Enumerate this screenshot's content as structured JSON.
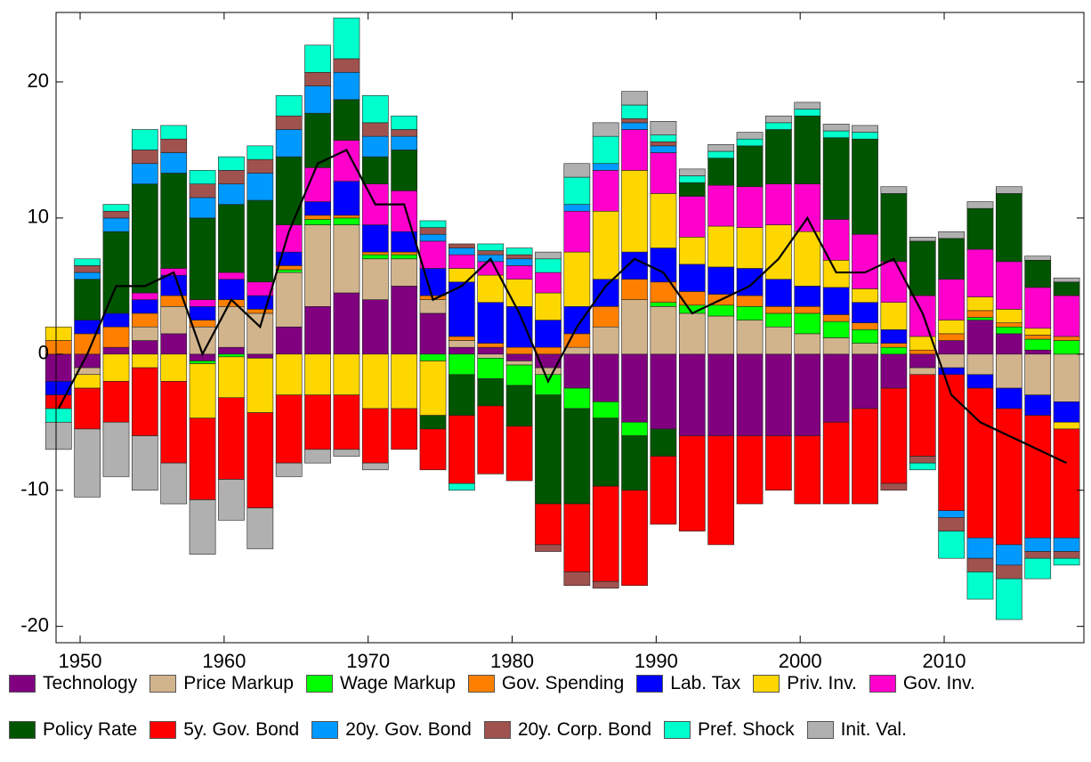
{
  "chart_data": {
    "type": "diverging-stacked-bar",
    "x": [
      1948.5,
      1950.5,
      1952.5,
      1954.5,
      1956.5,
      1958.5,
      1960.5,
      1962.5,
      1964.5,
      1966.5,
      1968.5,
      1970.5,
      1972.5,
      1974.5,
      1976.5,
      1978.5,
      1980.5,
      1982.5,
      1984.5,
      1986.5,
      1988.5,
      1990.5,
      1992.5,
      1994.5,
      1996.5,
      1998.5,
      2000.5,
      2002.5,
      2004.5,
      2006.5,
      2008.5,
      2010.5,
      2012.5,
      2014.5,
      2016.5,
      2018.5
    ],
    "xlim": [
      1948.33,
      2019.7
    ],
    "xticks": [
      1950,
      1960,
      1970,
      1980,
      1990,
      2000,
      2010
    ],
    "ylim": [
      -21.2,
      25.1
    ],
    "yticks": [
      -20,
      -10,
      0,
      10,
      20
    ],
    "series": [
      {
        "name": "Technology",
        "color": "#800080",
        "values": [
          -2,
          -1,
          0.5,
          1,
          1.5,
          -0.5,
          0.5,
          -0.3,
          2,
          3.5,
          4.5,
          4,
          5,
          3,
          0.5,
          0.5,
          -0.5,
          -1,
          -2.5,
          -3.5,
          -5,
          -5.5,
          -6,
          -6,
          -6,
          -6,
          -6,
          -5,
          -4,
          -2.5,
          -1,
          1,
          2.5,
          1.5,
          0.3,
          0
        ]
      },
      {
        "name": "Price Markup",
        "color": "#d2b48c",
        "values": [
          0,
          -0.5,
          0,
          1,
          2,
          2,
          3,
          3,
          4,
          6,
          5,
          3,
          2,
          1,
          0.5,
          -0.3,
          -0.3,
          -0.5,
          0.5,
          2,
          4,
          3.5,
          3,
          2.8,
          2.5,
          2,
          1.5,
          1.2,
          0.8,
          0,
          -0.5,
          -1,
          -1.5,
          -2.5,
          -3,
          -3.5
        ]
      },
      {
        "name": "Wage Markup",
        "color": "#00ff00",
        "values": [
          0,
          0,
          0,
          0,
          0,
          -0.2,
          -0.2,
          0,
          0.2,
          0.4,
          0.5,
          0.3,
          0.3,
          -0.5,
          -1.5,
          -1.5,
          -1.5,
          -1.5,
          -1.5,
          -1.2,
          -1,
          0.3,
          0.6,
          0.8,
          1,
          1,
          1.5,
          1.2,
          1,
          0.5,
          0,
          0,
          0.2,
          0.5,
          0.8,
          1
        ]
      },
      {
        "name": "Gov. Spending",
        "color": "#ff7f00",
        "values": [
          1,
          1.5,
          1.5,
          1,
          0.8,
          0.5,
          0.5,
          0.3,
          0.3,
          0.3,
          0.2,
          0.2,
          0.2,
          0.3,
          0.3,
          0.3,
          0.5,
          0.5,
          1,
          1.5,
          1.5,
          1.5,
          1,
          0.8,
          0.8,
          0.5,
          0.5,
          0.5,
          0.5,
          0.3,
          0.3,
          0.5,
          0.5,
          0.3,
          0.3,
          0.3
        ]
      },
      {
        "name": "Lab. Tax",
        "color": "#0000ff",
        "values": [
          -1,
          1,
          1,
          1,
          1.5,
          1,
          1.5,
          1,
          1,
          1,
          2.5,
          2,
          1.5,
          2,
          4,
          3,
          3,
          2,
          2,
          2,
          2,
          2.5,
          2,
          2,
          2,
          2,
          1.5,
          2,
          1.5,
          1,
          0,
          -0.5,
          -1,
          -1.5,
          -1.5,
          -1.5
        ]
      },
      {
        "name": "Priv. Inv.",
        "color": "#ffd700",
        "values": [
          1,
          -1,
          -2,
          -1,
          -2,
          -4,
          -3,
          -4,
          -3,
          -3,
          -3,
          -4,
          -4,
          -4,
          1,
          2,
          2,
          2,
          4,
          5,
          6,
          4,
          2,
          3,
          3,
          4,
          4,
          2,
          1,
          2,
          1,
          1,
          1,
          1,
          0.5,
          -0.5
        ]
      },
      {
        "name": "Gov. Inv.",
        "color": "#ff00cc",
        "values": [
          0,
          0,
          0,
          0.5,
          0.5,
          0.5,
          0.5,
          1,
          2,
          2.5,
          3,
          3,
          3,
          2,
          1,
          1,
          1,
          1.5,
          3,
          3,
          3,
          3,
          3,
          3,
          3,
          3,
          3.5,
          3,
          4,
          3,
          3,
          3,
          3.5,
          3.5,
          3,
          3
        ]
      },
      {
        "name": "Policy Rate",
        "color": "#005500",
        "values": [
          0,
          3,
          6,
          8,
          7,
          6,
          5,
          6,
          5,
          4,
          3,
          2,
          3,
          -1,
          -3,
          -2,
          -3,
          -8,
          -7,
          -5,
          -4,
          -2,
          1,
          2,
          3,
          4,
          5,
          6,
          7,
          5,
          4,
          3,
          3,
          5,
          2,
          1
        ]
      },
      {
        "name": "5y. Gov. Bond",
        "color": "#ff0000",
        "values": [
          -1,
          -3,
          -3,
          -5,
          -6,
          -6,
          -6,
          -7,
          -5,
          -4,
          -4,
          -4,
          -3,
          -3,
          -5,
          -5,
          -4,
          -3,
          -5,
          -7,
          -7,
          -5,
          -7,
          -8,
          -5,
          -4,
          -5,
          -6,
          -7,
          -7,
          -6,
          -10,
          -11,
          -10,
          -9,
          -8
        ]
      },
      {
        "name": "20y. Gov. Bond",
        "color": "#0099ff",
        "values": [
          0,
          0.5,
          1,
          1.5,
          1.5,
          1.5,
          1.5,
          2,
          2,
          2,
          2,
          1.5,
          1,
          0.5,
          0.5,
          0.5,
          0.5,
          0,
          0.5,
          0.5,
          0.5,
          0.5,
          0,
          0,
          0,
          0,
          0,
          0,
          0,
          0,
          0,
          -0.5,
          -1.5,
          -1.5,
          -1,
          -1
        ]
      },
      {
        "name": "20y. Corp. Bond",
        "color": "#a0524f",
        "values": [
          0,
          0.5,
          0.5,
          1,
          1,
          1,
          1,
          1,
          1,
          1,
          1,
          1,
          0.5,
          0.5,
          0.3,
          0.3,
          0.3,
          -0.5,
          -1,
          -0.5,
          0.3,
          0.3,
          0,
          0,
          0,
          0,
          0,
          0,
          0,
          -0.5,
          -0.5,
          -1,
          -1,
          -1,
          -0.5,
          -0.5
        ]
      },
      {
        "name": "Pref. Shock",
        "color": "#00ffcc",
        "values": [
          -1,
          0.5,
          0.5,
          1.5,
          1,
          1,
          1,
          1,
          1.5,
          2,
          3,
          2,
          1,
          0.5,
          -0.5,
          0.5,
          0.5,
          1,
          2,
          2,
          1,
          0.5,
          0.5,
          0.5,
          0.5,
          0.5,
          0.5,
          0.5,
          0.5,
          0,
          -0.5,
          -2,
          -2,
          -3,
          -1.5,
          -0.5
        ]
      },
      {
        "name": "Init. Val.",
        "color": "#b0b0b0",
        "values": [
          -2,
          -5,
          -4,
          -4,
          -3,
          -4,
          -3,
          -3,
          -1,
          -1,
          -0.5,
          -0.5,
          0,
          0,
          0,
          0,
          0,
          0.5,
          1,
          1,
          1,
          1,
          0.5,
          0.5,
          0.5,
          0.5,
          0.5,
          0.5,
          0.5,
          0.5,
          0.3,
          0.5,
          0.5,
          0.5,
          0.3,
          0.3
        ]
      }
    ],
    "line": {
      "color": "#000000",
      "values": [
        -4,
        0,
        5,
        5,
        6,
        0,
        4,
        2,
        9,
        14,
        15,
        11,
        11,
        4,
        5,
        7,
        3,
        -2,
        2,
        5,
        7,
        6,
        3,
        4,
        5,
        7,
        10,
        6,
        6,
        7,
        3,
        -3,
        -5,
        -6,
        -7,
        -8
      ]
    }
  }
}
